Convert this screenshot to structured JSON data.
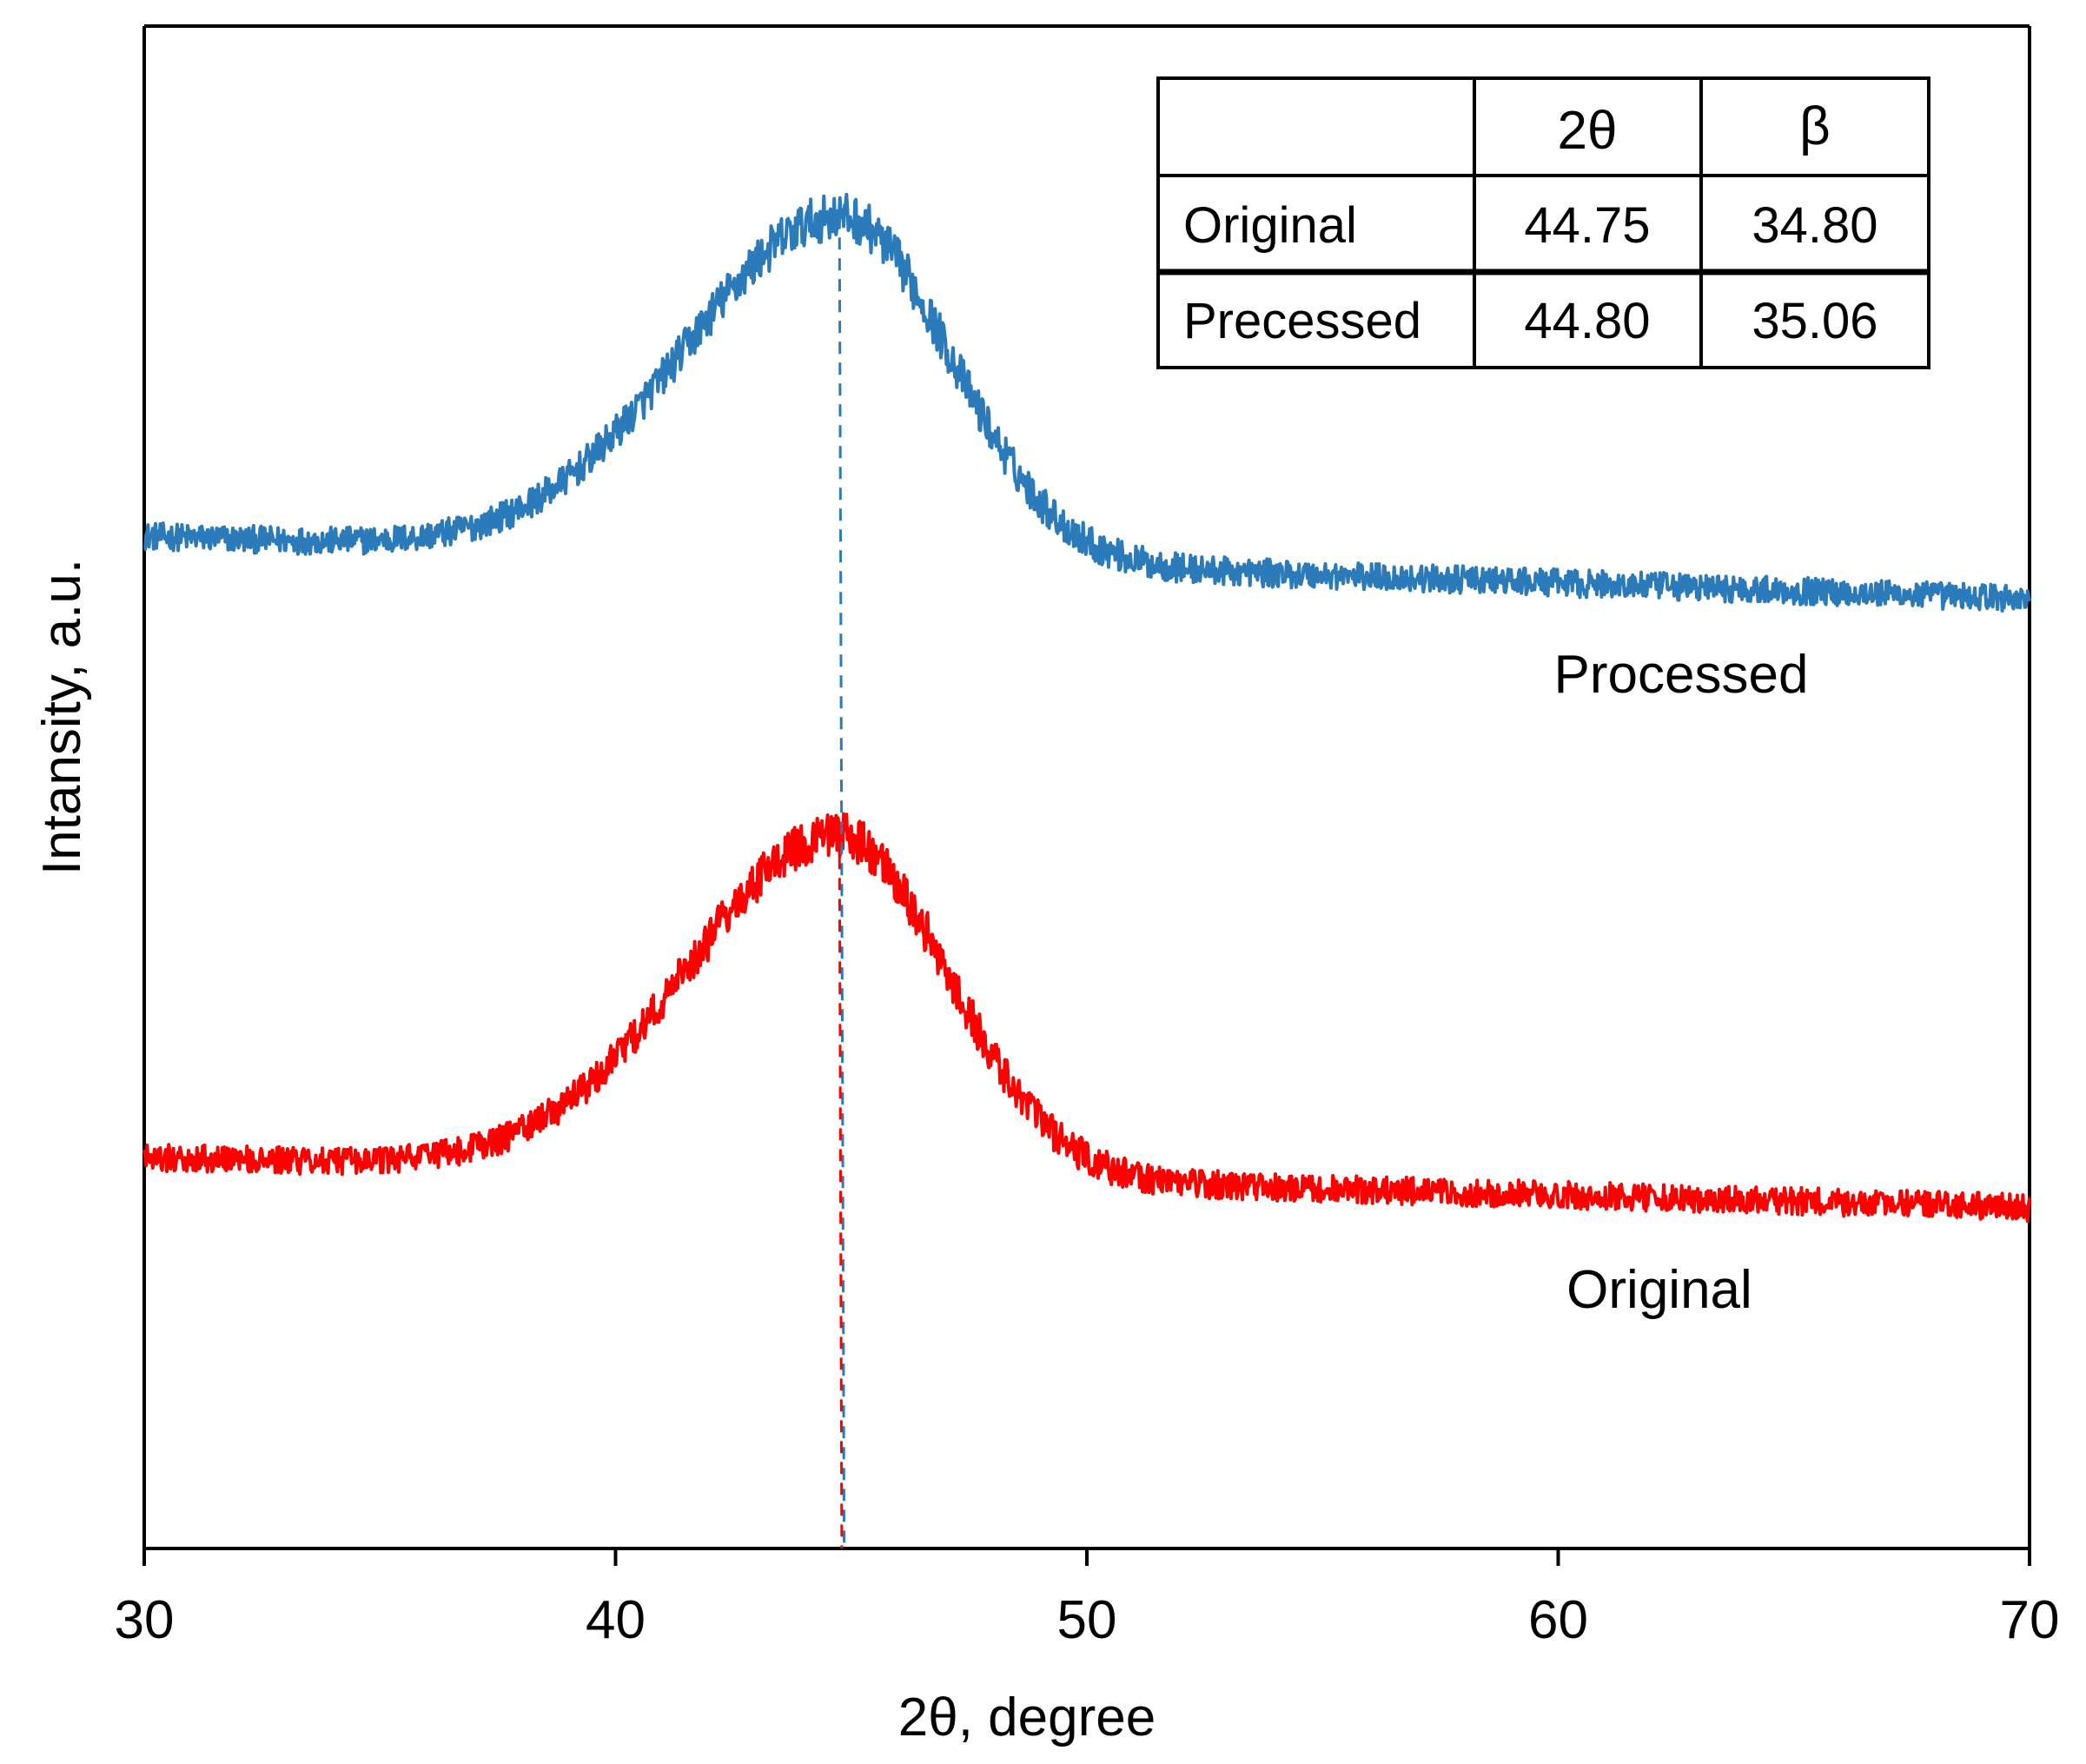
{
  "chart_data": {
    "type": "line",
    "title": "",
    "xlabel": "2θ, degree",
    "ylabel": "Intansity, a.u.",
    "xlim": [
      30,
      70
    ],
    "ylim": [
      0,
      100
    ],
    "x_ticks": [
      "30",
      "40",
      "50",
      "60",
      "70"
    ],
    "y_ticks_shown": false,
    "series": [
      {
        "name": "Processed",
        "label": "Processed",
        "color": "#2b7bba",
        "peak_position": 44.8,
        "baseline_left": 66.5,
        "baseline_right": 62.4,
        "peak_height": 22.5,
        "left_width": 3.3,
        "right_width": 2.3,
        "noise_amplitude": 0.9,
        "points": [
          [
            30,
            66.5
          ],
          [
            34,
            66.2
          ],
          [
            38,
            67.2
          ],
          [
            41,
            72.8
          ],
          [
            43,
            80.5
          ],
          [
            44,
            84.5
          ],
          [
            44.8,
            89.0
          ],
          [
            46,
            85.5
          ],
          [
            47,
            79.0
          ],
          [
            48,
            72.5
          ],
          [
            50,
            67.5
          ],
          [
            55,
            63.8
          ],
          [
            60,
            62.9
          ],
          [
            65,
            62.5
          ],
          [
            70,
            62.6
          ]
        ]
      },
      {
        "name": "Original",
        "label": "Original",
        "color": "#ff0000",
        "peak_position": 44.75,
        "baseline_left": 25.7,
        "baseline_right": 22.4,
        "peak_height": 22.3,
        "left_width": 3.2,
        "right_width": 2.3,
        "noise_amplitude": 0.9,
        "points": [
          [
            30,
            25.7
          ],
          [
            34,
            25.5
          ],
          [
            38,
            26.3
          ],
          [
            41,
            31.5
          ],
          [
            43,
            38.5
          ],
          [
            44,
            42.5
          ],
          [
            44.75,
            47.5
          ],
          [
            46,
            43.5
          ],
          [
            47,
            37.5
          ],
          [
            48,
            31.5
          ],
          [
            50,
            27.0
          ],
          [
            55,
            23.8
          ],
          [
            60,
            22.8
          ],
          [
            65,
            22.4
          ],
          [
            70,
            22.5
          ]
        ]
      }
    ],
    "reference_lines": [
      {
        "series": "Processed",
        "x": 44.8,
        "style": "dashed",
        "color": "#2b7bba"
      },
      {
        "series": "Original",
        "x": 44.75,
        "style": "dashed",
        "color": "#ff0000"
      }
    ],
    "inset_table": {
      "headers": [
        "",
        "2θ",
        "β"
      ],
      "rows": [
        [
          "Original",
          "44.75",
          "34.80"
        ],
        [
          "Precessed",
          "44.80",
          "35.06"
        ]
      ]
    }
  }
}
